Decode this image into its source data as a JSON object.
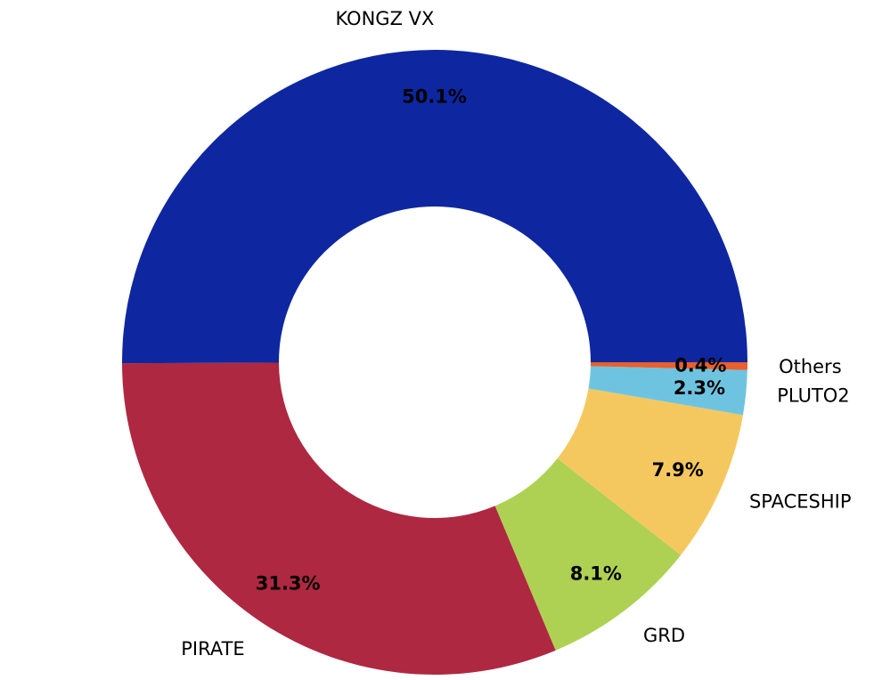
{
  "chart_data": {
    "type": "pie",
    "donut": true,
    "start_angle_deg": 0,
    "direction": "counterclockwise",
    "slices": [
      {
        "label": "KONGZ VX",
        "value": 50.1,
        "pct_label": "50.1%",
        "color": "#0e27a0"
      },
      {
        "label": "PIRATE",
        "value": 31.3,
        "pct_label": "31.3%",
        "color": "#ae2841"
      },
      {
        "label": "GRD",
        "value": 8.1,
        "pct_label": "8.1%",
        "color": "#aed153"
      },
      {
        "label": "SPACESHIP",
        "value": 7.9,
        "pct_label": "7.9%",
        "color": "#f5c85f"
      },
      {
        "label": "PLUTO2",
        "value": 2.3,
        "pct_label": "2.3%",
        "color": "#6ec4e0"
      },
      {
        "label": "Others",
        "value": 0.4,
        "pct_label": "0.4%",
        "color": "#e8602c"
      }
    ]
  }
}
